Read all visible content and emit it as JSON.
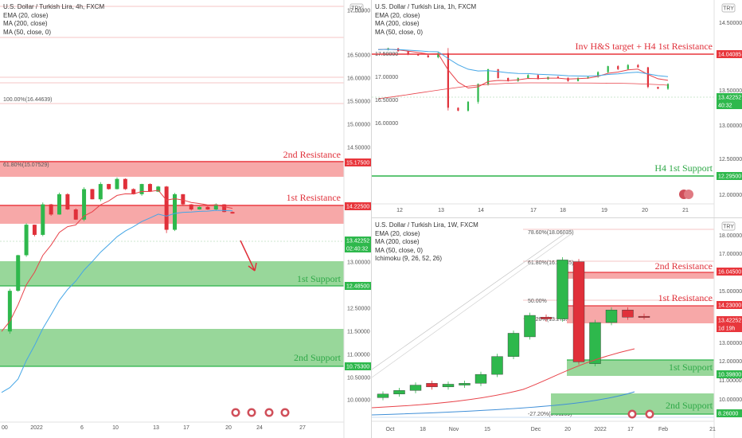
{
  "colors": {
    "up": "#2eb84c",
    "down": "#e0303a",
    "resistance": "#f7a8a8",
    "resistance_line": "#e8363c",
    "support": "#98d79a",
    "support_line": "#2bb34a",
    "label_red": "#e0303a",
    "label_green": "#2ea847",
    "ema": "#e8434a",
    "ma200": "#3f8fd8",
    "ma50": "#45a6e6"
  },
  "panels": [
    {
      "id": "p1",
      "legend": [
        "U.S. Dollar / Turkish Lira, 4h, FXCM",
        "EMA (20, close)",
        "MA (200, close)",
        "MA (50, close, 0)"
      ],
      "currency_badge": "TRY",
      "price_labels": [
        "17.00000",
        "16.50000",
        "16.00000",
        "15.50000",
        "15.00000",
        "14.50000",
        "13.00000",
        "12.50000",
        "11.50000",
        "11.00000",
        "10.50000",
        "10.00000"
      ],
      "time_labels": [
        "00",
        "2022",
        "6",
        "10",
        "13",
        "17",
        "20",
        "24",
        "27"
      ],
      "fib_labels": [
        "100.00%(16.44639)",
        "61.80%(15.07529)"
      ],
      "zones": [
        {
          "label": "2nd Resistance",
          "tag": "15.17500",
          "kind": "resistance"
        },
        {
          "label": "1st Resistance",
          "tag": "14.22500",
          "kind": "resistance"
        },
        {
          "label": "1st Support",
          "tag": "12.48500",
          "kind": "support"
        },
        {
          "label": "2nd Support",
          "tag": "10.75300",
          "kind": "support"
        }
      ],
      "price_tag": "13.42252",
      "countdown_tag": "02:40:32"
    },
    {
      "id": "p2",
      "legend": [
        "U.S. Dollar / Turkish Lira, 1h, FXCM",
        "EMA (20, close)",
        "MA (200, close)",
        "MA (50, close, 0)"
      ],
      "currency_badge": "TRY",
      "price_labels": [
        "17.50000",
        "17.00000",
        "16.50000",
        "16.00000"
      ],
      "right_labels": [
        "14.50000",
        "13.50000",
        "13.00000",
        "12.50000",
        "12.00000"
      ],
      "time_labels": [
        "12",
        "13",
        "14",
        "17",
        "18",
        "19",
        "20",
        "21"
      ],
      "zones": [
        {
          "label": "Inv H&S target + H4 1st Resistance",
          "tag": "14.04085",
          "kind": "resistance"
        },
        {
          "label": "H4 1st Support",
          "tag": "12.29500",
          "kind": "support"
        }
      ],
      "price_tag": "13.42252",
      "countdown_tag": "40:32"
    },
    {
      "id": "p3",
      "legend": [
        "U.S. Dollar / Turkish Lira, 1W, FXCM",
        "EMA (20, close)",
        "MA (200, close)",
        "MA (50, close, 0)",
        "Ichimoku (9, 26, 52, 26)"
      ],
      "currency_badge": "TRY",
      "price_labels": [
        "18.00000",
        "17.00000",
        "16.00000",
        "15.00000",
        "13.00000",
        "12.00000",
        "11.00000",
        "10.00000",
        "9.00000"
      ],
      "time_labels": [
        "Oct",
        "18",
        "Nov",
        "15",
        "Dec",
        "20",
        "2022",
        "17",
        "Feb",
        "21"
      ],
      "fib_labels": [
        "78.60%(18.06035)",
        "61.80%(16.38085)",
        "50.00%",
        "38.20%(13.2799",
        "-27.20%(8.01159)"
      ],
      "zones": [
        {
          "label": "2nd Resistance",
          "tag": "16.04500",
          "kind": "resistance"
        },
        {
          "label": "1st Resistance",
          "tag": "14.23000",
          "kind": "resistance"
        },
        {
          "label": "1st Support",
          "tag": "10.39800",
          "kind": "support"
        },
        {
          "label": "2nd Support",
          "tag": "8.26000",
          "kind": "support"
        }
      ],
      "price_tag": "13.42252",
      "countdown_tag": "1d 19h"
    }
  ],
  "chart_data": [
    {
      "type": "candlestick",
      "title": "U.S. Dollar / Turkish Lira, 4h, FXCM",
      "ylim": [
        9.6,
        17.4
      ],
      "support_resistance": {
        "resistance": [
          15.175,
          14.225
        ],
        "support": [
          12.485,
          10.753
        ]
      },
      "last_price": 13.42252,
      "close_path": [
        11.1,
        11.9,
        12.6,
        13.2,
        13.0,
        13.6,
        13.4,
        13.8,
        13.5,
        13.3,
        13.9,
        13.7,
        14.0,
        13.9,
        14.1,
        13.9,
        13.8,
        14.0,
        13.85,
        13.95,
        13.1,
        13.8,
        13.6,
        13.5,
        13.55,
        13.5,
        13.6,
        13.45,
        13.42
      ]
    },
    {
      "type": "candlestick",
      "title": "U.S. Dollar / Turkish Lira, 1h, FXCM",
      "ylim": [
        15.6,
        17.8
      ],
      "support_resistance": {
        "resistance": [
          14.04085
        ],
        "support": [
          12.295
        ]
      },
      "last_price": 13.42252,
      "close_path": [
        17.18,
        17.2,
        17.15,
        17.1,
        17.08,
        17.05,
        17.12,
        16.2,
        16.15,
        16.3,
        16.6,
        16.85,
        16.7,
        16.65,
        16.7,
        16.75,
        16.68,
        16.72,
        16.7,
        16.65,
        16.7,
        16.72,
        16.8,
        16.9,
        16.85,
        16.92,
        16.88,
        16.55,
        16.52,
        16.6
      ]
    },
    {
      "type": "candlestick",
      "title": "U.S. Dollar / Turkish Lira, 1W, FXCM",
      "ylim": [
        7.8,
        18.4
      ],
      "support_resistance": {
        "resistance": [
          16.045,
          14.23
        ],
        "support": [
          10.398,
          8.26
        ]
      },
      "last_price": 13.42252,
      "candles": [
        {
          "o": 8.9,
          "c": 9.1
        },
        {
          "o": 9.1,
          "c": 9.3
        },
        {
          "o": 9.3,
          "c": 9.6
        },
        {
          "o": 9.7,
          "c": 9.5
        },
        {
          "o": 9.5,
          "c": 9.65
        },
        {
          "o": 9.6,
          "c": 9.7
        },
        {
          "o": 9.7,
          "c": 10.2
        },
        {
          "o": 10.2,
          "c": 11.2
        },
        {
          "o": 11.2,
          "c": 12.5
        },
        {
          "o": 12.3,
          "c": 13.5
        },
        {
          "o": 13.4,
          "c": 13.3
        },
        {
          "o": 13.3,
          "c": 16.6
        },
        {
          "o": 16.5,
          "c": 10.9
        },
        {
          "o": 10.8,
          "c": 13.1
        },
        {
          "o": 13.1,
          "c": 13.8
        },
        {
          "o": 13.8,
          "c": 13.4
        },
        {
          "o": 13.45,
          "c": 13.42
        }
      ]
    }
  ]
}
